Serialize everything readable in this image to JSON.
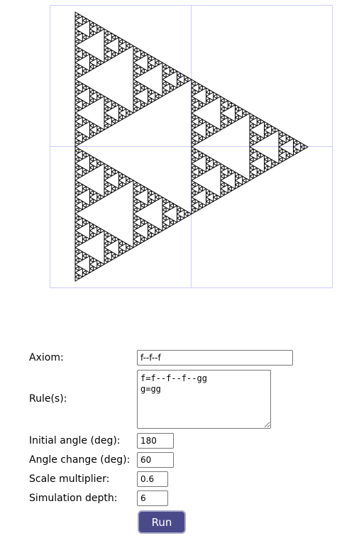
{
  "lsystem": {
    "axiom_label": "Axiom:",
    "axiom_value": "f--f--f",
    "rules_label": "Rule(s):",
    "rules_value": "f=f--f--f--gg\ng=gg",
    "initial_angle_label": "Initial angle (deg):",
    "initial_angle_value": "180",
    "angle_change_label": "Angle change (deg):",
    "angle_change_value": "60",
    "scale_multiplier_label": "Scale multiplier:",
    "scale_multiplier_value": "0.6",
    "depth_label": "Simulation depth:",
    "depth_value": "6",
    "run_label": "Run"
  },
  "colors": {
    "grid": "#ccccff",
    "stroke": "#000000",
    "button_bg": "#4a4a8a"
  }
}
